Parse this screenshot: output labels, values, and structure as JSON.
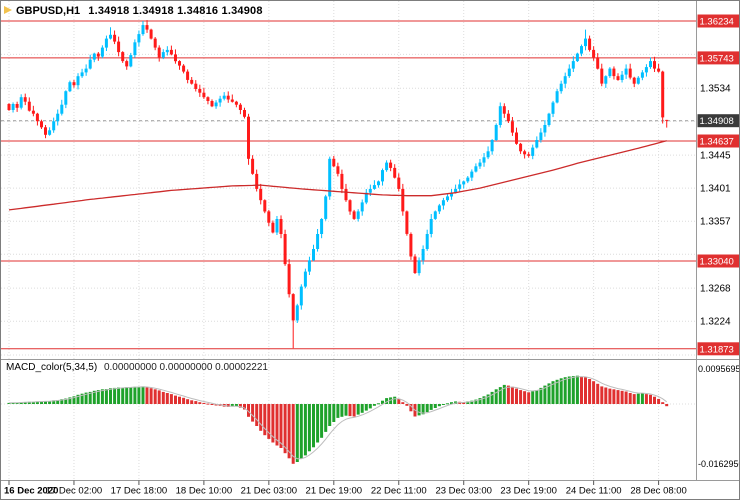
{
  "window": {
    "symbol_label": "GBPUSD,H1",
    "ohlc_text": "1.34918 1.34918 1.34816 1.34908"
  },
  "colors": {
    "background": "#FFFFFF",
    "bull": "#00BFFF",
    "bear": "#FF1A1A",
    "level_line": "#E03030",
    "badge_red": "#E03030",
    "badge_dark": "#3A3A3A",
    "ma_line": "#CC2B2B",
    "macd_up": "#1FA22B",
    "macd_down": "#E03030",
    "signal": "#BDBDBD",
    "grid": "#DCDCDC",
    "axis_text": "#000000",
    "separator": "#9A9A9A",
    "current_line": "#9A9A9A",
    "triangle": "#F2C24E"
  },
  "price_axis": {
    "level_badges": [
      {
        "text": "1.36234",
        "price": 1.36234
      },
      {
        "text": "1.35743",
        "price": 1.35743
      },
      {
        "text": "1.34637",
        "price": 1.34637
      },
      {
        "text": "1.33040",
        "price": 1.3304
      },
      {
        "text": "1.31873",
        "price": 1.31873
      }
    ],
    "current": {
      "text": "1.34908",
      "price": 1.34908
    }
  },
  "macd": {
    "label": "MACD_color(5,34,5)",
    "values_text": "0.00000000 0.00000000 0.00002221"
  },
  "chart_data": [
    {
      "type": "candlestick",
      "symbol": "GBPUSD",
      "timeframe": "H1",
      "ylim": [
        1.3175,
        1.365
      ],
      "grid_levels": [
        1.3579,
        1.3534,
        1.349,
        1.3445,
        1.3401,
        1.3357,
        1.3313,
        1.3268,
        1.3224,
        1.3179
      ],
      "y_ticks": [
        {
          "text": "1.3534",
          "price": 1.3534
        },
        {
          "text": "1.3445",
          "price": 1.3445
        },
        {
          "text": "1.3401",
          "price": 1.3401
        },
        {
          "text": "1.3357",
          "price": 1.3357
        },
        {
          "text": "1.3268",
          "price": 1.3268
        },
        {
          "text": "1.3224",
          "price": 1.3224
        }
      ],
      "levels": [
        1.36234,
        1.35743,
        1.34637,
        1.3304,
        1.31873
      ],
      "current_price": 1.34908,
      "x_labels": [
        "16 Dec 2020",
        "17 Dec 02:00",
        "17 Dec 18:00",
        "18 Dec 10:00",
        "21 Dec 03:00",
        "21 Dec 19:00",
        "22 Dec 11:00",
        "23 Dec 03:00",
        "23 Dec 19:00",
        "24 Dec 11:00",
        "28 Dec 08:00"
      ],
      "bars_per_label": 16,
      "closes": [
        1.3505,
        1.3513,
        1.3508,
        1.3522,
        1.3516,
        1.3504,
        1.35,
        1.349,
        1.3482,
        1.3472,
        1.3478,
        1.349,
        1.35,
        1.3512,
        1.353,
        1.3542,
        1.3538,
        1.355,
        1.3555,
        1.356,
        1.3572,
        1.358,
        1.3576,
        1.3588,
        1.36,
        1.3605,
        1.3596,
        1.3582,
        1.357,
        1.3563,
        1.3578,
        1.3595,
        1.3606,
        1.3618,
        1.3612,
        1.36,
        1.3588,
        1.3575,
        1.3582,
        1.3585,
        1.3579,
        1.357,
        1.3564,
        1.3556,
        1.3545,
        1.354,
        1.3533,
        1.3528,
        1.3522,
        1.3517,
        1.351,
        1.3515,
        1.352,
        1.3524,
        1.3519,
        1.3516,
        1.3512,
        1.3505,
        1.3496,
        1.344,
        1.342,
        1.34,
        1.3385,
        1.337,
        1.3355,
        1.3342,
        1.336,
        1.334,
        1.33,
        1.326,
        1.3225,
        1.3245,
        1.327,
        1.329,
        1.3305,
        1.332,
        1.334,
        1.336,
        1.339,
        1.344,
        1.343,
        1.342,
        1.34,
        1.3385,
        1.337,
        1.336,
        1.337,
        1.3382,
        1.3395,
        1.34,
        1.3405,
        1.341,
        1.3425,
        1.3435,
        1.3428,
        1.3415,
        1.34,
        1.337,
        1.334,
        1.331,
        1.3288,
        1.3305,
        1.332,
        1.334,
        1.336,
        1.337,
        1.3378,
        1.3385,
        1.339,
        1.3395,
        1.34,
        1.3406,
        1.341,
        1.3415,
        1.3423,
        1.343,
        1.3435,
        1.3442,
        1.345,
        1.3465,
        1.3485,
        1.351,
        1.35,
        1.349,
        1.3475,
        1.346,
        1.345,
        1.3446,
        1.3444,
        1.3455,
        1.3465,
        1.3475,
        1.3485,
        1.35,
        1.3515,
        1.353,
        1.354,
        1.355,
        1.356,
        1.357,
        1.358,
        1.359,
        1.36,
        1.3585,
        1.3575,
        1.356,
        1.354,
        1.355,
        1.356,
        1.355,
        1.3545,
        1.3552,
        1.356,
        1.3548,
        1.354,
        1.3548,
        1.3555,
        1.3562,
        1.357,
        1.356,
        1.3556,
        1.3495,
        1.34908
      ],
      "wick_overrides": {
        "25": {
          "high": 1.3615
        },
        "33": {
          "high": 1.36234
        },
        "59": {
          "low": 1.3432
        },
        "70": {
          "low": 1.3188
        },
        "121": {
          "high": 1.3515
        },
        "142": {
          "high": 1.3612
        },
        "161": {
          "low": 1.3487
        },
        "162": {
          "open": 1.34918,
          "high": 1.34918,
          "low": 1.34816,
          "close": 1.34908
        }
      },
      "ma_points": [
        [
          0,
          1.3372
        ],
        [
          20,
          1.3386
        ],
        [
          40,
          1.3398
        ],
        [
          55,
          1.3404
        ],
        [
          62,
          1.3405
        ],
        [
          72,
          1.34
        ],
        [
          82,
          1.3396
        ],
        [
          92,
          1.3392
        ],
        [
          98,
          1.3391
        ],
        [
          104,
          1.3391
        ],
        [
          110,
          1.3395
        ],
        [
          116,
          1.3401
        ],
        [
          122,
          1.3409
        ],
        [
          128,
          1.3417
        ],
        [
          134,
          1.3425
        ],
        [
          140,
          1.3434
        ],
        [
          146,
          1.3442
        ],
        [
          152,
          1.345
        ],
        [
          157,
          1.3457
        ],
        [
          162,
          1.3464
        ]
      ]
    },
    {
      "type": "bar",
      "name": "MACD_color(5,34,5)",
      "ylim": [
        -0.0175,
        0.0105
      ],
      "zero_line": 0,
      "y_tick_labels": [
        {
          "text": "0.0095695",
          "value": 0.0095695
        },
        {
          "text": "-0.0162950",
          "value": -0.016295
        }
      ],
      "values": [
        0.0003,
        0.0004,
        0.0004,
        0.0005,
        0.0005,
        0.0006,
        0.0006,
        0.0007,
        0.0007,
        0.0008,
        0.0008,
        0.001,
        0.0011,
        0.0013,
        0.0015,
        0.0018,
        0.0021,
        0.0025,
        0.0028,
        0.0031,
        0.0033,
        0.0036,
        0.0038,
        0.004,
        0.0041,
        0.0043,
        0.0044,
        0.0045,
        0.0045,
        0.0046,
        0.0046,
        0.0047,
        0.0047,
        0.0048,
        0.0045,
        0.0043,
        0.004,
        0.0037,
        0.0033,
        0.003,
        0.0027,
        0.0023,
        0.002,
        0.0017,
        0.0013,
        0.001,
        0.0008,
        0.0005,
        0.0003,
        0.0001,
        -0.0002,
        -0.0004,
        -0.0005,
        -0.0007,
        -0.0008,
        -0.0007,
        -0.0006,
        -0.001,
        -0.0015,
        -0.0035,
        -0.0048,
        -0.006,
        -0.0073,
        -0.0085,
        -0.0095,
        -0.0105,
        -0.0113,
        -0.012,
        -0.0134,
        -0.0148,
        -0.0163,
        -0.0158,
        -0.0149,
        -0.014,
        -0.0129,
        -0.0118,
        -0.0105,
        -0.0092,
        -0.0076,
        -0.006,
        -0.0049,
        -0.0038,
        -0.0035,
        -0.0032,
        -0.0033,
        -0.0034,
        -0.0029,
        -0.0024,
        -0.0018,
        -0.0012,
        -0.0005,
        0.0002,
        0.0009,
        0.0016,
        0.0018,
        0.002,
        0.0014,
        0.0005,
        -0.0005,
        -0.002,
        -0.0034,
        -0.0031,
        -0.0028,
        -0.0022,
        -0.0016,
        -0.0011,
        -0.0006,
        -0.0002,
        0.0002,
        0.0005,
        0.0007,
        0.0006,
        0.0005,
        0.0007,
        0.0009,
        0.0012,
        0.0016,
        0.0021,
        0.0026,
        0.0033,
        0.004,
        0.0046,
        0.0052,
        0.005,
        0.0047,
        0.0042,
        0.0038,
        0.0035,
        0.0032,
        0.0035,
        0.0038,
        0.0044,
        0.005,
        0.0056,
        0.0062,
        0.0066,
        0.007,
        0.0073,
        0.0075,
        0.0076,
        0.0077,
        0.0075,
        0.0073,
        0.0068,
        0.0062,
        0.0055,
        0.0048,
        0.0045,
        0.0042,
        0.004,
        0.0038,
        0.0036,
        0.0034,
        0.003,
        0.0027,
        0.0028,
        0.0029,
        0.0027,
        0.0025,
        0.002,
        0.0014,
        0.0005,
        -0.0006
      ]
    }
  ]
}
